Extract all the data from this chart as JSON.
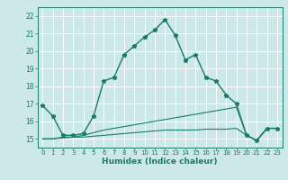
{
  "title": "",
  "xlabel": "Humidex (Indice chaleur)",
  "ylabel": "",
  "background_color": "#cce8e8",
  "grid_color": "#ffffff",
  "line_color": "#1a7a6a",
  "xlim": [
    -0.5,
    23.5
  ],
  "ylim": [
    14.5,
    22.5
  ],
  "x_ticks": [
    0,
    1,
    2,
    3,
    4,
    5,
    6,
    7,
    8,
    9,
    10,
    11,
    12,
    13,
    14,
    15,
    16,
    17,
    18,
    19,
    20,
    21,
    22,
    23
  ],
  "y_ticks": [
    15,
    16,
    17,
    18,
    19,
    20,
    21,
    22
  ],
  "line1_x": [
    0,
    1,
    2,
    3,
    4,
    5,
    6,
    7,
    8,
    9,
    10,
    11,
    12,
    13,
    14,
    15,
    16,
    17,
    18,
    19,
    20,
    21,
    22,
    23
  ],
  "line1_y": [
    16.9,
    16.3,
    15.2,
    15.2,
    15.3,
    16.3,
    18.3,
    18.5,
    19.8,
    20.3,
    20.8,
    21.2,
    21.8,
    20.9,
    19.5,
    19.8,
    18.5,
    18.3,
    17.5,
    17.0,
    15.2,
    14.9,
    15.6,
    15.6
  ],
  "line2_x": [
    0,
    1,
    2,
    3,
    4,
    5,
    6,
    7,
    8,
    9,
    10,
    11,
    12,
    13,
    14,
    15,
    16,
    17,
    18,
    19,
    20,
    21,
    22,
    23
  ],
  "line2_y": [
    15.0,
    15.0,
    15.1,
    15.1,
    15.2,
    15.35,
    15.5,
    15.6,
    15.7,
    15.8,
    15.9,
    16.0,
    16.1,
    16.2,
    16.3,
    16.4,
    16.5,
    16.6,
    16.7,
    16.8,
    15.2,
    14.9,
    15.6,
    15.6
  ],
  "line3_x": [
    0,
    1,
    2,
    3,
    4,
    5,
    6,
    7,
    8,
    9,
    10,
    11,
    12,
    13,
    14,
    15,
    16,
    17,
    18,
    19,
    20,
    21,
    22,
    23
  ],
  "line3_y": [
    15.0,
    15.0,
    15.05,
    15.1,
    15.1,
    15.15,
    15.2,
    15.25,
    15.3,
    15.35,
    15.4,
    15.45,
    15.5,
    15.5,
    15.5,
    15.5,
    15.55,
    15.55,
    15.55,
    15.6,
    15.2,
    14.9,
    15.6,
    15.6
  ]
}
